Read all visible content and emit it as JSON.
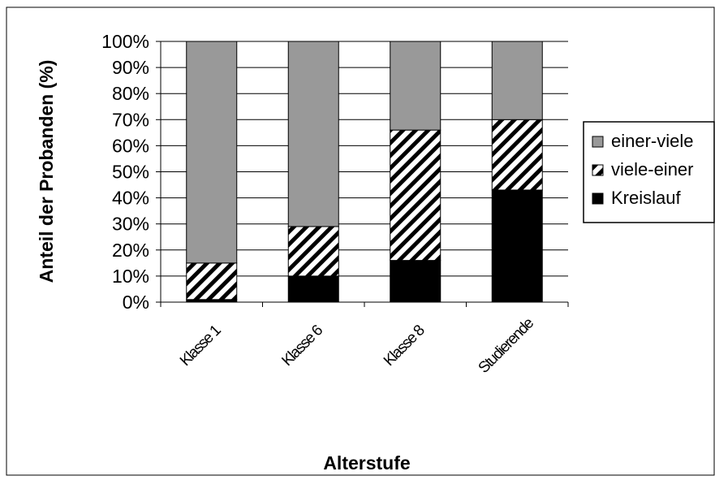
{
  "chart_data": {
    "type": "bar",
    "stacked": true,
    "percent": true,
    "title": "",
    "xlabel": "Alterstufe",
    "ylabel": "Anteil der Probanden (%)",
    "categories": [
      "Klasse 1",
      "Klasse 6",
      "Klasse 8",
      "Studierende"
    ],
    "ylim": [
      0,
      100
    ],
    "yticks": [
      "0%",
      "10%",
      "20%",
      "30%",
      "40%",
      "50%",
      "60%",
      "70%",
      "80%",
      "90%",
      "100%"
    ],
    "grid": "horizontal",
    "legend": "right",
    "series": [
      {
        "name": "Kreislauf",
        "values": [
          1,
          10,
          16,
          43
        ],
        "color": "#000000",
        "pattern": "solid"
      },
      {
        "name": "viele-einer",
        "values": [
          14,
          19,
          50,
          27
        ],
        "color": "#000000",
        "pattern": "diagonal-hatch"
      },
      {
        "name": "einer-viele",
        "values": [
          85,
          71,
          34,
          30
        ],
        "color": "#999999",
        "pattern": "solid"
      }
    ],
    "legend_order": [
      "einer-viele",
      "viele-einer",
      "Kreislauf"
    ]
  }
}
